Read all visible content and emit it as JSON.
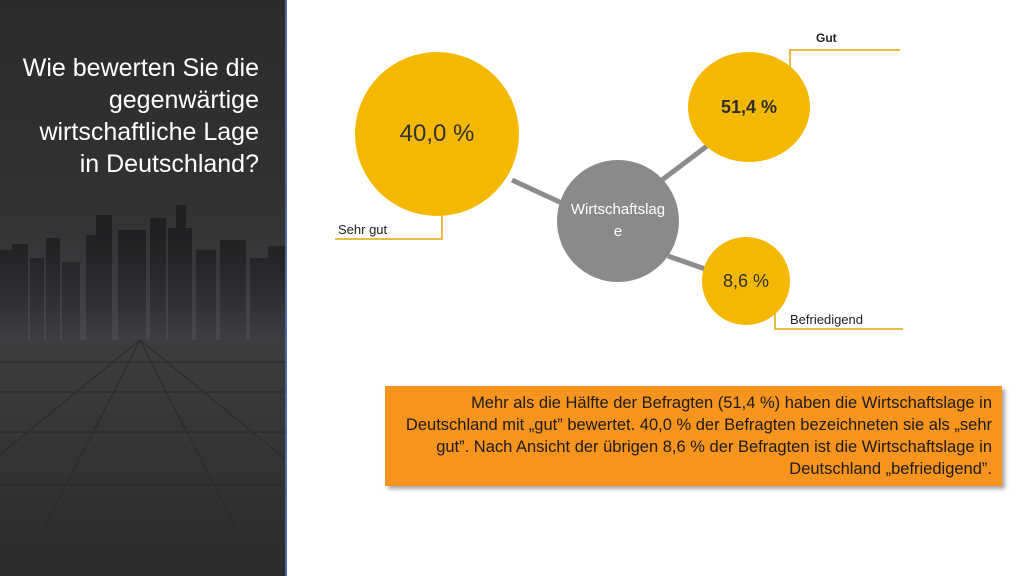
{
  "question": "Wie bewerten Sie die gegenwärtige wirtschaftliche Lage in Deutschland?",
  "center_node": "Wirtschaftslage",
  "nodes": [
    {
      "value": "40,0 %",
      "label": "Sehr gut"
    },
    {
      "value": "51,4 %",
      "label": "Gut"
    },
    {
      "value": "8,6 %",
      "label": "Befriedigend"
    }
  ],
  "summary": "Mehr als die Hälfte der Befragten (51,4 %) haben die Wirtschaftslage in Deutschland mit „gut” bewertet. 40,0 % der Befragten bezeichneten sie als „sehr gut”. Nach Ansicht der übrigen 8,6 % der Befragten ist die Wirtschaftslage in Deutschland „befriedigend”.",
  "colors": {
    "bubble": "#f5b800",
    "center": "#8a8a8a",
    "connector": "#8c8c8c",
    "callout_line": "#e0a800",
    "summary_box": "#f7941d",
    "panel_border": "#4a6aa6"
  }
}
